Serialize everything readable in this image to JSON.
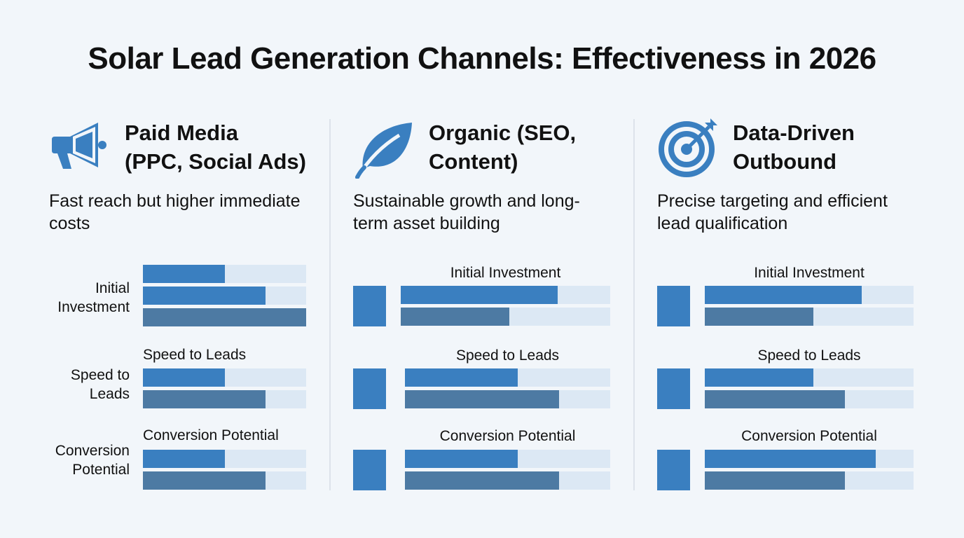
{
  "title": "Solar Lead Generation Channels: Effectiveness in 2026",
  "colors": {
    "primary": "#3a7fc0",
    "secondary": "#4d7aa3",
    "track": "#dce8f4",
    "background": "#f2f6fa"
  },
  "chart_data": {
    "type": "bar",
    "orientation": "horizontal",
    "unit": "percent of full bar",
    "panels": [
      {
        "icon": "megaphone-icon",
        "title_line1": "Paid Media",
        "title_line2": "(PPC, Social Ads)",
        "description": "Fast reach but higher immediate costs",
        "side_labels": [
          "Initial Investment",
          "Speed to Leads",
          "Conversion Potential"
        ],
        "metrics": [
          {
            "label": "",
            "values": [
              50,
              75,
              100
            ]
          },
          {
            "label": "Speed to Leads",
            "values": [
              50,
              75
            ]
          },
          {
            "label": "Conversion Potential",
            "values": [
              50,
              75
            ]
          }
        ]
      },
      {
        "icon": "leaf-icon",
        "title_line1": "Organic (SEO,",
        "title_line2": "Content)",
        "description": "Sustainable growth and long-term asset building",
        "metrics": [
          {
            "label": "Initial Investment",
            "values": [
              75,
              52
            ]
          },
          {
            "label": "Speed to Leads",
            "values": [
              55,
              75
            ]
          },
          {
            "label": "Conversion Potential",
            "values": [
              55,
              75
            ]
          }
        ]
      },
      {
        "icon": "target-icon",
        "title_line1": "Data-Driven",
        "title_line2": "Outbound",
        "description": "Precise targeting and efficient lead qualification",
        "metrics": [
          {
            "label": "Initial Investment",
            "values": [
              75,
              52
            ]
          },
          {
            "label": "Speed to Leads",
            "values": [
              52,
              67
            ]
          },
          {
            "label": "Conversion Potential",
            "values": [
              82,
              67
            ]
          }
        ]
      }
    ]
  }
}
